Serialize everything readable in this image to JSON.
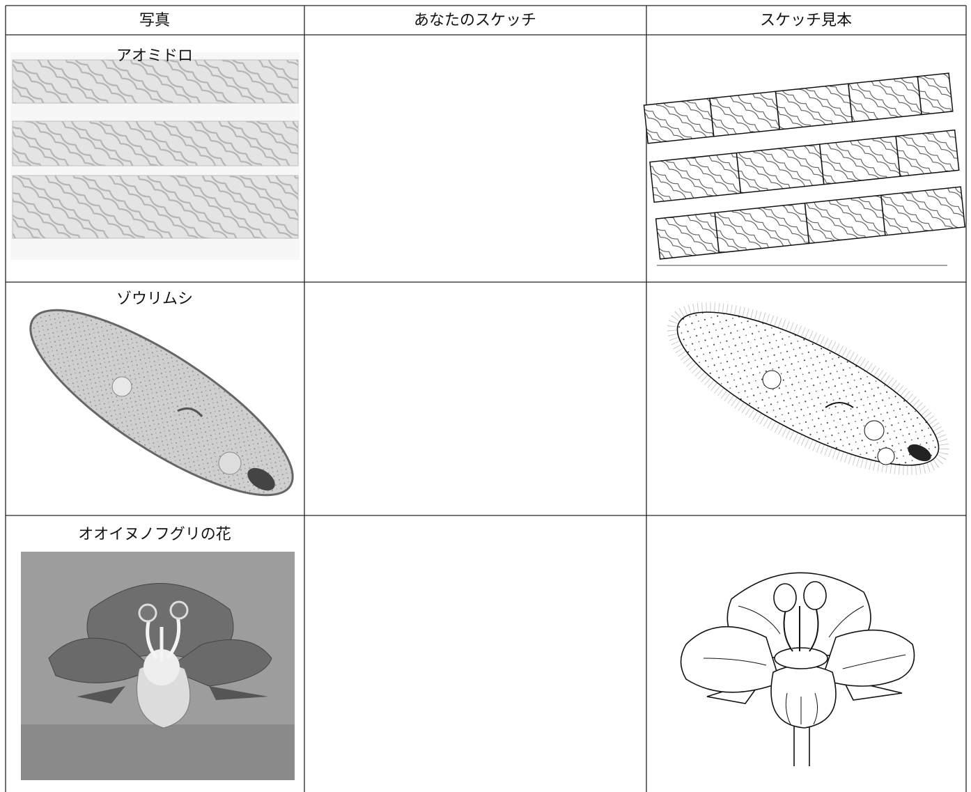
{
  "table": {
    "headers": [
      "写真",
      "あなたのスケッチ",
      "スケッチ見本"
    ],
    "rows": [
      {
        "label": "アオミドロ"
      },
      {
        "label": "ゾウリムシ"
      },
      {
        "label": "オオイヌノフグリの花"
      }
    ]
  }
}
